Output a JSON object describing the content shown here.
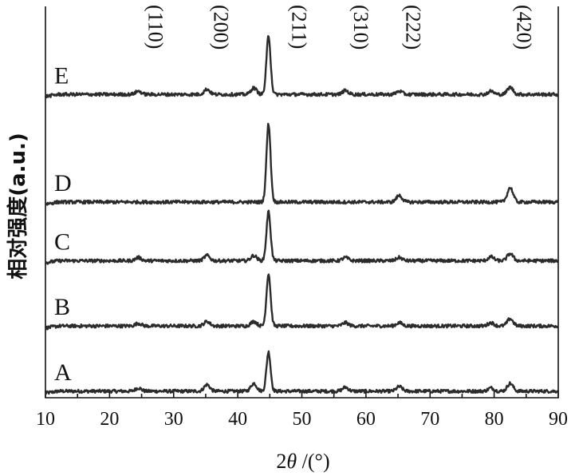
{
  "chart_data": {
    "type": "line",
    "title": "",
    "xlabel": {
      "prefix": "2",
      "symbol": "θ",
      "suffix": " /(°)"
    },
    "ylabel": "相对强度(a.u.)",
    "xlim": [
      10,
      90
    ],
    "ylim": [
      0,
      6
    ],
    "x_ticks": [
      10,
      20,
      30,
      40,
      50,
      60,
      70,
      80,
      90
    ],
    "y_ticks": [],
    "grid": false,
    "legend": "none",
    "line_color": "#2b2b2b",
    "series": [
      {
        "name": "A",
        "baseline": 0.1,
        "peaks": [
          {
            "x": 24.5,
            "h": 0.05
          },
          {
            "x": 35.2,
            "h": 0.1
          },
          {
            "x": 42.5,
            "h": 0.12
          },
          {
            "x": 44.8,
            "h": 0.6
          },
          {
            "x": 56.8,
            "h": 0.06
          },
          {
            "x": 65.2,
            "h": 0.07
          },
          {
            "x": 79.5,
            "h": 0.05
          },
          {
            "x": 82.5,
            "h": 0.12
          }
        ]
      },
      {
        "name": "B",
        "baseline": 1.1,
        "peaks": [
          {
            "x": 24.5,
            "h": 0.04
          },
          {
            "x": 35.2,
            "h": 0.07
          },
          {
            "x": 42.5,
            "h": 0.07
          },
          {
            "x": 44.8,
            "h": 0.8
          },
          {
            "x": 56.8,
            "h": 0.05
          },
          {
            "x": 65.2,
            "h": 0.05
          },
          {
            "x": 79.5,
            "h": 0.05
          },
          {
            "x": 82.5,
            "h": 0.11
          }
        ]
      },
      {
        "name": "C",
        "baseline": 2.1,
        "peaks": [
          {
            "x": 24.5,
            "h": 0.05
          },
          {
            "x": 35.2,
            "h": 0.08
          },
          {
            "x": 42.5,
            "h": 0.08
          },
          {
            "x": 44.8,
            "h": 0.75
          },
          {
            "x": 56.8,
            "h": 0.05
          },
          {
            "x": 65.2,
            "h": 0.05
          },
          {
            "x": 79.5,
            "h": 0.06
          },
          {
            "x": 82.5,
            "h": 0.11
          }
        ]
      },
      {
        "name": "D",
        "baseline": 3.0,
        "peaks": [
          {
            "x": 44.8,
            "h": 1.2
          },
          {
            "x": 65.2,
            "h": 0.1
          },
          {
            "x": 82.5,
            "h": 0.22
          }
        ]
      },
      {
        "name": "E",
        "baseline": 4.65,
        "peaks": [
          {
            "x": 24.5,
            "h": 0.05
          },
          {
            "x": 35.2,
            "h": 0.08
          },
          {
            "x": 42.5,
            "h": 0.1
          },
          {
            "x": 44.8,
            "h": 0.9
          },
          {
            "x": 56.8,
            "h": 0.06
          },
          {
            "x": 65.2,
            "h": 0.05
          },
          {
            "x": 79.5,
            "h": 0.05
          },
          {
            "x": 82.5,
            "h": 0.11
          }
        ]
      }
    ],
    "peak_labels": [
      {
        "text": "(110)",
        "x": 25.0
      },
      {
        "text": "(200)",
        "x": 35.2
      },
      {
        "text": "(211)",
        "x": 47.4
      },
      {
        "text": "(310)",
        "x": 57.0
      },
      {
        "text": "(222)",
        "x": 65.2
      },
      {
        "text": "(420)",
        "x": 82.5
      }
    ]
  }
}
